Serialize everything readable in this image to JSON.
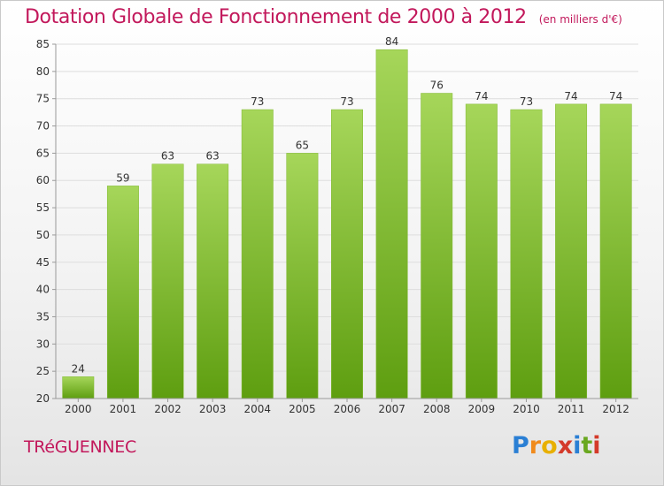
{
  "title": "Dotation Globale de Fonctionnement de 2000 à 2012",
  "subtitle": "(en milliers d'€)",
  "commune": "TRéGUENNEC",
  "logo": {
    "text": "Proxiti",
    "letters": [
      "P",
      "r",
      "o",
      "x",
      "i",
      "t",
      "i"
    ],
    "colors": [
      "#2a7fd4",
      "#f08a1c",
      "#e8b000",
      "#d43a2a",
      "#2a7fd4",
      "#6aa820",
      "#d43a2a"
    ]
  },
  "colors": {
    "bar_top": "#a6d65a",
    "bar_bottom": "#5e9e10",
    "title": "#c2185b",
    "grid": "#dddddd"
  },
  "chart_data": {
    "type": "bar",
    "title": "Dotation Globale de Fonctionnement de 2000 à 2012",
    "subtitle": "(en milliers d'€)",
    "xlabel": "",
    "ylabel": "",
    "categories": [
      "2000",
      "2001",
      "2002",
      "2003",
      "2004",
      "2005",
      "2006",
      "2007",
      "2008",
      "2009",
      "2010",
      "2011",
      "2012"
    ],
    "values": [
      24,
      59,
      63,
      63,
      73,
      65,
      73,
      84,
      76,
      74,
      73,
      74,
      74
    ],
    "ylim": [
      20,
      85
    ],
    "yticks": [
      20,
      25,
      30,
      35,
      40,
      45,
      50,
      55,
      60,
      65,
      70,
      75,
      80,
      85
    ],
    "grid": true,
    "legend": "none"
  }
}
